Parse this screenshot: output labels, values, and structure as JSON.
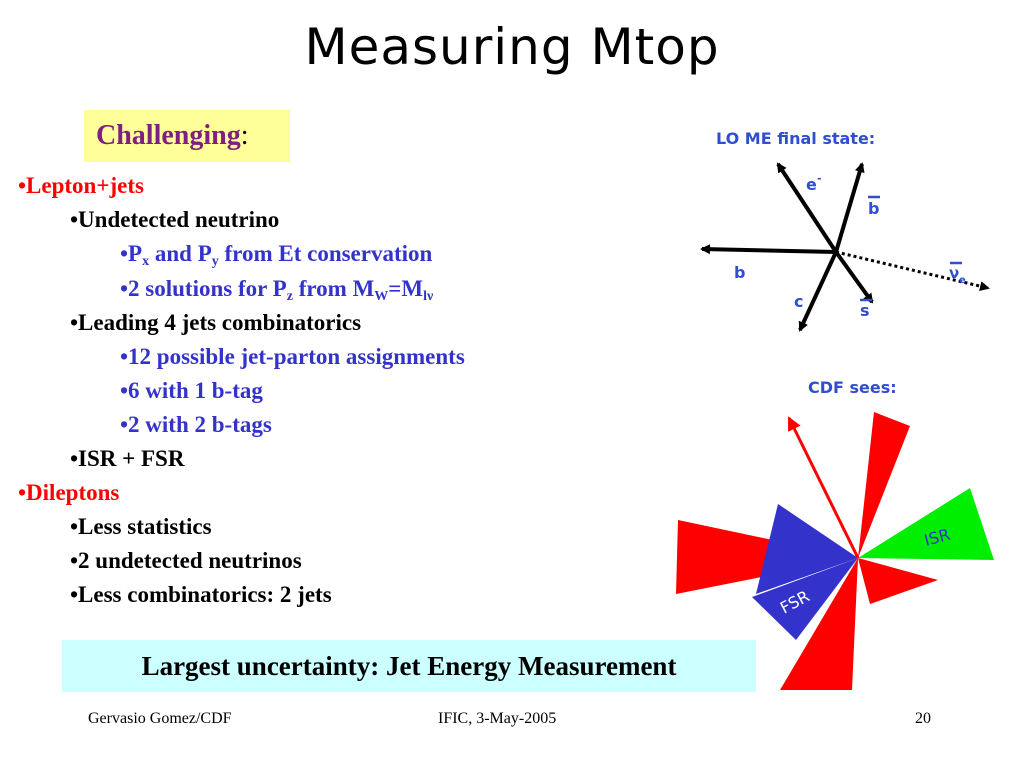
{
  "slide": {
    "title": "Measuring Mtop",
    "challenging": {
      "word": "Challenging",
      "colon": ":"
    },
    "bullets": {
      "lepton_jets": "•Lepton+jets",
      "undetected_neutrino": "•Undetected neutrino",
      "pxpy": {
        "bullet": "•P",
        "x": "x",
        "and": " and P",
        "y": "y",
        "rest": " from Et conservation"
      },
      "two_solutions": {
        "pre": "•2 solutions for P",
        "z": "z",
        "from": " from M",
        "w": "W",
        "eq": "=M",
        "lnu": "lν"
      },
      "leading4": "•Leading 4 jets combinatorics",
      "twelve": "•12 possible jet-parton assignments",
      "six": "•6 with 1 b-tag",
      "two_btags": "•2 with 2 b-tags",
      "isr_fsr": "•ISR + FSR",
      "dileptons": "•Dileptons",
      "less_stats": "•Less statistics",
      "two_neutrinos": "•2 undetected neutrinos",
      "less_comb": "•Less combinatorics: 2 jets"
    },
    "banner": "Largest uncertainty: Jet Energy Measurement",
    "footer": {
      "left": "Gervasio Gomez/CDF",
      "center": "IFIC, 3-May-2005",
      "right": "20"
    }
  },
  "diagram_top": {
    "label": "LO ME final state:",
    "particles": {
      "e": "e",
      "e_sup": "-",
      "bbar": "b",
      "b": "b",
      "c": "c",
      "sbar": "s",
      "nu": "ν",
      "nu_sub": "e"
    },
    "colors": {
      "label": "#2f4fcf",
      "arrow": "#000000"
    }
  },
  "diagram_bottom": {
    "label": "CDF sees:",
    "isr": "ISR",
    "fsr": "FSR",
    "colors": {
      "jet": "#ff0000",
      "fsr": "#3333cc",
      "isr": "#00ee00",
      "lepton": "#ff0000"
    }
  }
}
